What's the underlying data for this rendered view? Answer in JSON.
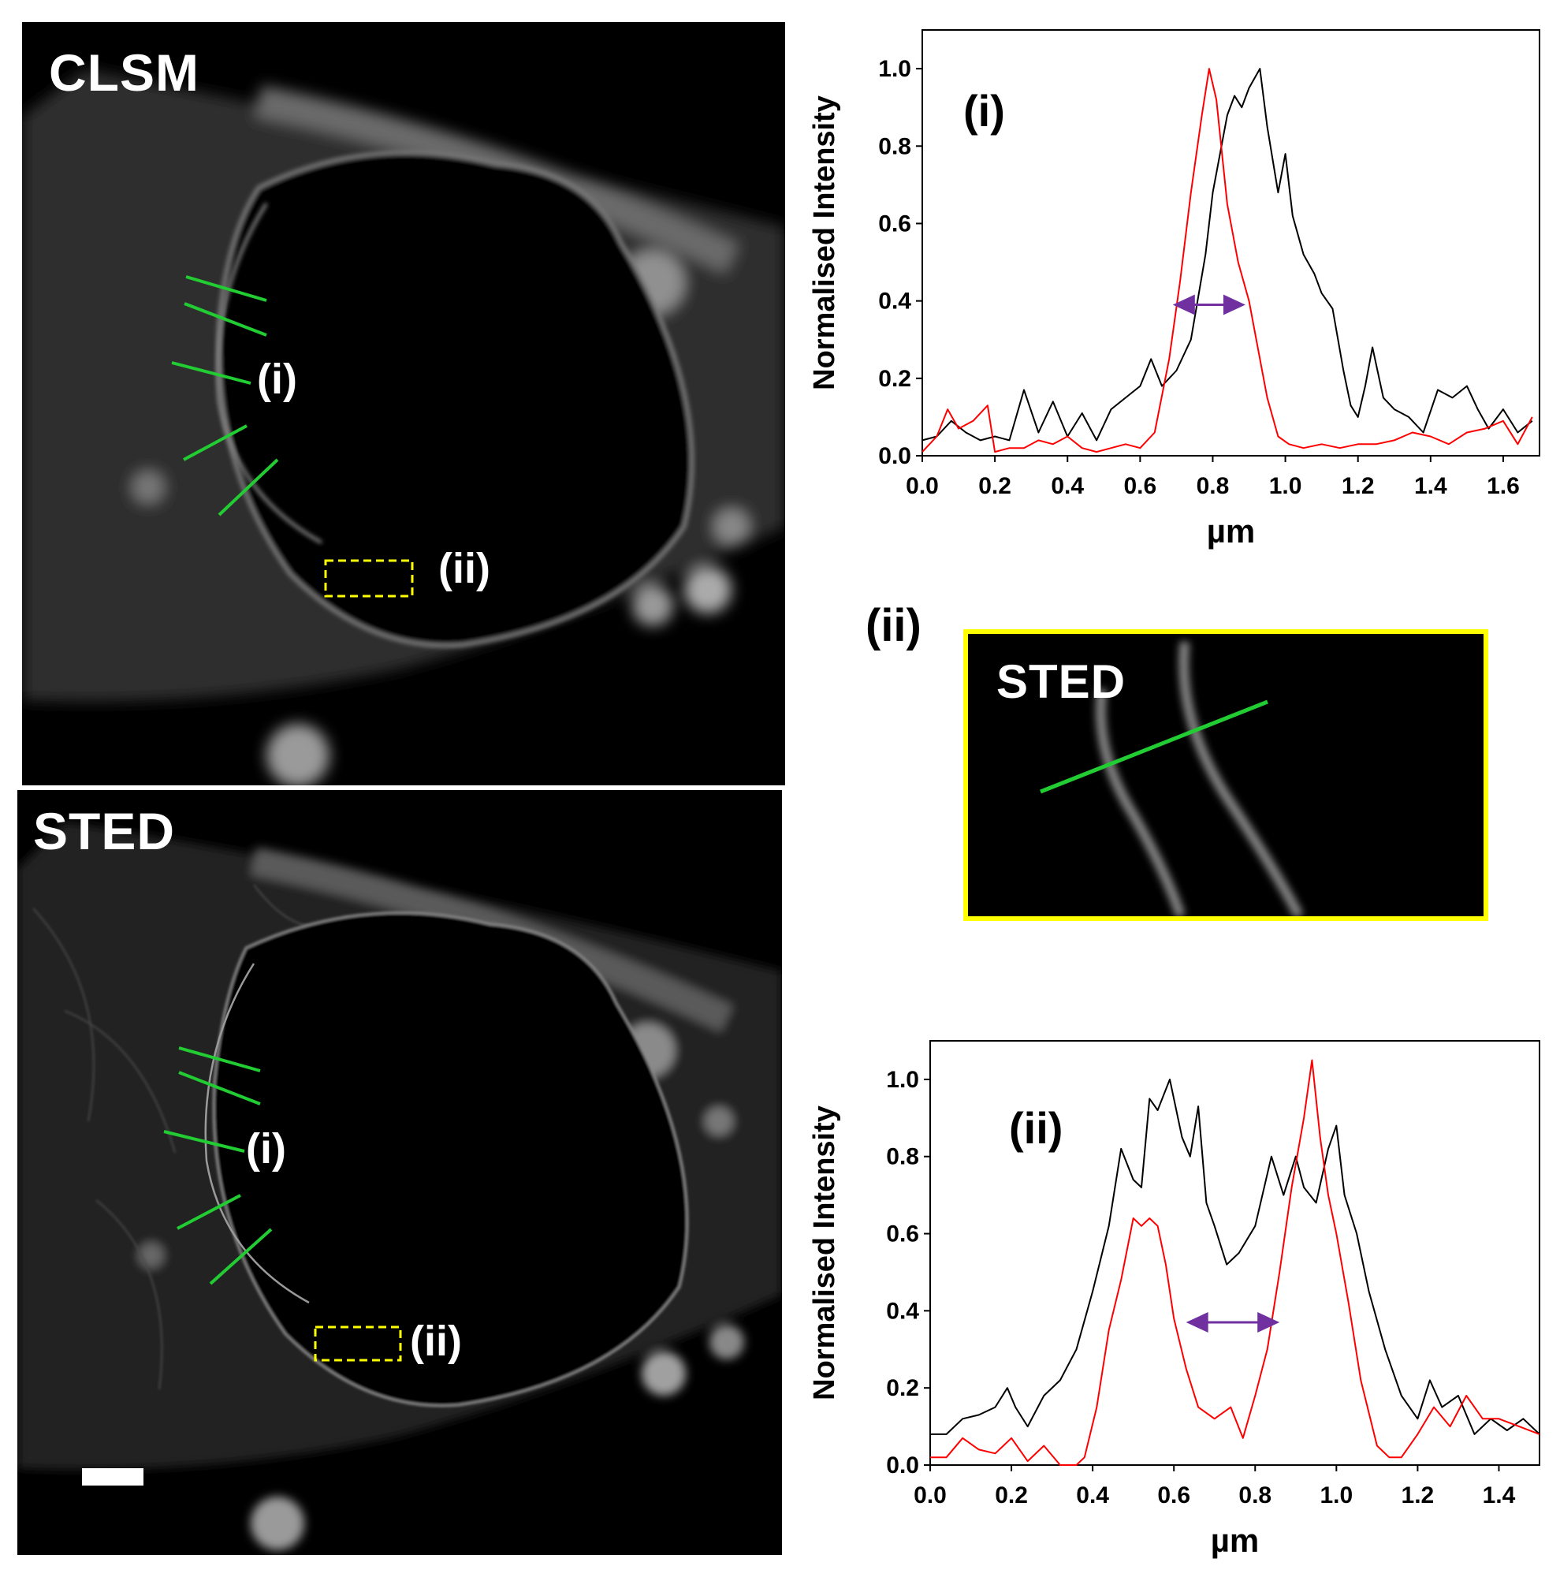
{
  "images": {
    "clsm": {
      "label": "CLSM",
      "profile_i": "(i)",
      "box_ii": "(ii)"
    },
    "sted": {
      "label": "STED",
      "profile_i": "(i)",
      "box_ii": "(ii)"
    },
    "zoom": {
      "heading": "(ii)",
      "label": "STED"
    }
  },
  "colors": {
    "profile_line": "#22cc33",
    "roi_box": "#ffff00",
    "clsm_trace": "#000000",
    "sted_trace": "#ff0000",
    "arrow": "#7030a0"
  },
  "chart_data": [
    {
      "type": "line",
      "panel": "(i)",
      "xlabel": "µm",
      "ylabel": "Normalised Intensity",
      "xlim": [
        0.0,
        1.7
      ],
      "ylim": [
        0.0,
        1.1
      ],
      "xticks": [
        "0.0",
        "0.2",
        "0.4",
        "0.6",
        "0.8",
        "1.0",
        "1.2",
        "1.4",
        "1.6"
      ],
      "yticks": [
        "0.0",
        "0.2",
        "0.4",
        "0.6",
        "0.8",
        "1.0"
      ],
      "arrow": {
        "x1": 0.69,
        "x2": 0.89,
        "y": 0.39
      },
      "series": [
        {
          "name": "CLSM",
          "color": "#000000",
          "x": [
            0.0,
            0.04,
            0.08,
            0.12,
            0.16,
            0.2,
            0.24,
            0.28,
            0.32,
            0.36,
            0.4,
            0.44,
            0.48,
            0.52,
            0.56,
            0.6,
            0.63,
            0.66,
            0.7,
            0.74,
            0.78,
            0.8,
            0.84,
            0.86,
            0.88,
            0.9,
            0.93,
            0.95,
            0.98,
            1.0,
            1.02,
            1.05,
            1.08,
            1.1,
            1.13,
            1.16,
            1.18,
            1.2,
            1.22,
            1.24,
            1.27,
            1.3,
            1.34,
            1.38,
            1.42,
            1.46,
            1.5,
            1.53,
            1.56,
            1.6,
            1.64,
            1.68
          ],
          "y": [
            0.04,
            0.05,
            0.09,
            0.06,
            0.04,
            0.05,
            0.04,
            0.17,
            0.06,
            0.14,
            0.05,
            0.11,
            0.04,
            0.12,
            0.15,
            0.18,
            0.25,
            0.18,
            0.22,
            0.3,
            0.52,
            0.68,
            0.88,
            0.93,
            0.9,
            0.95,
            1.0,
            0.85,
            0.68,
            0.78,
            0.62,
            0.52,
            0.47,
            0.42,
            0.38,
            0.22,
            0.13,
            0.1,
            0.18,
            0.28,
            0.15,
            0.12,
            0.1,
            0.06,
            0.17,
            0.15,
            0.18,
            0.12,
            0.07,
            0.12,
            0.06,
            0.09
          ]
        },
        {
          "name": "STED",
          "color": "#ff0000",
          "x": [
            0.0,
            0.04,
            0.07,
            0.1,
            0.14,
            0.18,
            0.2,
            0.24,
            0.28,
            0.32,
            0.36,
            0.4,
            0.44,
            0.48,
            0.52,
            0.56,
            0.6,
            0.64,
            0.68,
            0.71,
            0.74,
            0.77,
            0.79,
            0.81,
            0.84,
            0.87,
            0.9,
            0.92,
            0.95,
            0.98,
            1.01,
            1.05,
            1.1,
            1.15,
            1.2,
            1.25,
            1.3,
            1.35,
            1.4,
            1.45,
            1.5,
            1.55,
            1.6,
            1.64,
            1.68
          ],
          "y": [
            0.01,
            0.05,
            0.12,
            0.07,
            0.09,
            0.13,
            0.01,
            0.02,
            0.02,
            0.04,
            0.03,
            0.05,
            0.02,
            0.01,
            0.02,
            0.03,
            0.02,
            0.06,
            0.25,
            0.45,
            0.68,
            0.88,
            1.0,
            0.92,
            0.65,
            0.5,
            0.4,
            0.3,
            0.15,
            0.05,
            0.03,
            0.02,
            0.03,
            0.02,
            0.03,
            0.03,
            0.04,
            0.06,
            0.05,
            0.03,
            0.06,
            0.07,
            0.09,
            0.03,
            0.1
          ]
        }
      ]
    },
    {
      "type": "line",
      "panel": "(ii)",
      "xlabel": "µm",
      "ylabel": "Normalised Intensity",
      "xlim": [
        0.0,
        1.5
      ],
      "ylim": [
        0.0,
        1.1
      ],
      "xticks": [
        "0.0",
        "0.2",
        "0.4",
        "0.6",
        "0.8",
        "1.0",
        "1.2",
        "1.4"
      ],
      "yticks": [
        "0.0",
        "0.2",
        "0.4",
        "0.6",
        "0.8",
        "1.0"
      ],
      "arrow": {
        "x1": 0.63,
        "x2": 0.86,
        "y": 0.37
      },
      "series": [
        {
          "name": "CLSM",
          "color": "#000000",
          "x": [
            0.0,
            0.04,
            0.08,
            0.12,
            0.16,
            0.19,
            0.21,
            0.24,
            0.28,
            0.32,
            0.36,
            0.4,
            0.44,
            0.47,
            0.5,
            0.52,
            0.54,
            0.56,
            0.59,
            0.62,
            0.64,
            0.66,
            0.68,
            0.7,
            0.73,
            0.76,
            0.8,
            0.84,
            0.87,
            0.9,
            0.92,
            0.95,
            0.98,
            1.0,
            1.02,
            1.05,
            1.08,
            1.12,
            1.16,
            1.2,
            1.23,
            1.26,
            1.3,
            1.34,
            1.38,
            1.42,
            1.46,
            1.5
          ],
          "y": [
            0.08,
            0.08,
            0.12,
            0.13,
            0.15,
            0.2,
            0.15,
            0.1,
            0.18,
            0.22,
            0.3,
            0.45,
            0.62,
            0.82,
            0.74,
            0.72,
            0.95,
            0.92,
            1.0,
            0.85,
            0.8,
            0.93,
            0.68,
            0.62,
            0.52,
            0.55,
            0.62,
            0.8,
            0.7,
            0.8,
            0.72,
            0.68,
            0.82,
            0.88,
            0.7,
            0.6,
            0.45,
            0.3,
            0.18,
            0.12,
            0.22,
            0.15,
            0.18,
            0.08,
            0.12,
            0.09,
            0.12,
            0.08
          ]
        },
        {
          "name": "STED",
          "color": "#ff0000",
          "x": [
            0.0,
            0.04,
            0.08,
            0.12,
            0.16,
            0.2,
            0.24,
            0.28,
            0.32,
            0.36,
            0.38,
            0.41,
            0.44,
            0.47,
            0.5,
            0.52,
            0.54,
            0.56,
            0.58,
            0.6,
            0.63,
            0.66,
            0.7,
            0.74,
            0.77,
            0.8,
            0.83,
            0.86,
            0.89,
            0.92,
            0.94,
            0.96,
            0.98,
            1.0,
            1.03,
            1.06,
            1.1,
            1.13,
            1.16,
            1.2,
            1.24,
            1.28,
            1.32,
            1.36,
            1.4,
            1.45,
            1.5
          ],
          "y": [
            0.02,
            0.02,
            0.07,
            0.04,
            0.03,
            0.07,
            0.01,
            0.05,
            0.0,
            0.0,
            0.02,
            0.15,
            0.35,
            0.48,
            0.64,
            0.62,
            0.64,
            0.62,
            0.52,
            0.38,
            0.25,
            0.15,
            0.12,
            0.15,
            0.07,
            0.18,
            0.3,
            0.5,
            0.72,
            0.9,
            1.05,
            0.85,
            0.7,
            0.6,
            0.42,
            0.22,
            0.05,
            0.02,
            0.02,
            0.08,
            0.15,
            0.1,
            0.18,
            0.12,
            0.12,
            0.1,
            0.08
          ]
        }
      ]
    }
  ]
}
